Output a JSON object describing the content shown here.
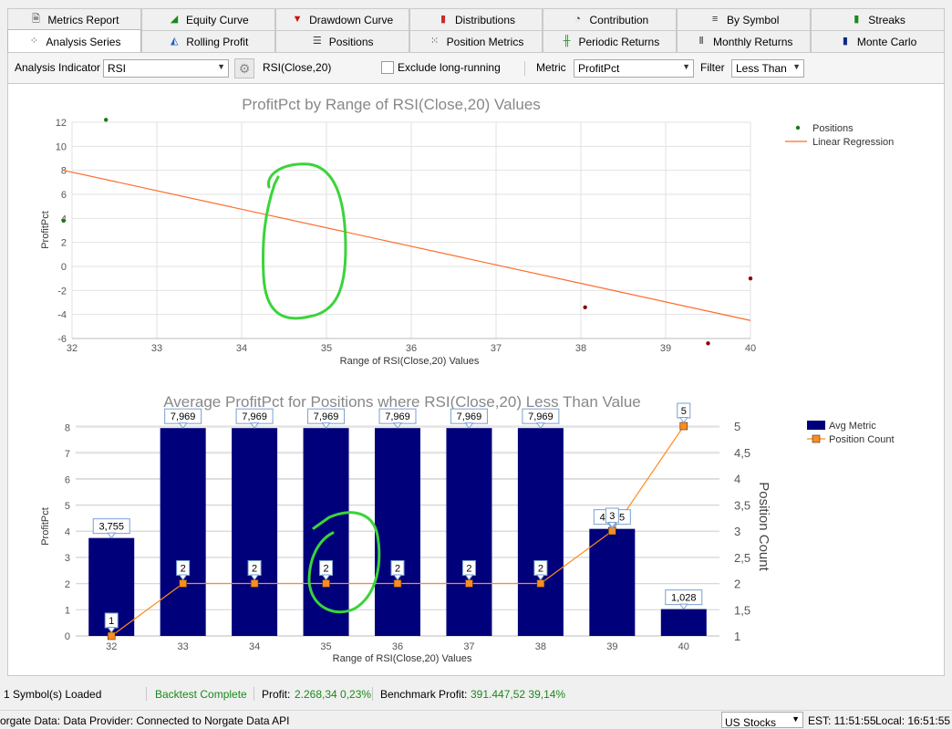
{
  "tabs_row1": [
    {
      "label": "Metrics Report",
      "icon": "document-icon"
    },
    {
      "label": "Equity Curve",
      "icon": "area-chart-icon"
    },
    {
      "label": "Drawdown Curve",
      "icon": "drawdown-icon"
    },
    {
      "label": "Distributions",
      "icon": "histogram-icon"
    },
    {
      "label": "Contribution",
      "icon": "pie-icon"
    },
    {
      "label": "By Symbol",
      "icon": "abc-icon"
    },
    {
      "label": "Streaks",
      "icon": "streaks-icon"
    }
  ],
  "tabs_row2": [
    {
      "label": "Analysis Series",
      "icon": "scatter-icon",
      "active": true
    },
    {
      "label": "Rolling Profit",
      "icon": "rolling-icon"
    },
    {
      "label": "Positions",
      "icon": "list-icon"
    },
    {
      "label": "Position Metrics",
      "icon": "dots-icon"
    },
    {
      "label": "Periodic Returns",
      "icon": "candles-icon"
    },
    {
      "label": "Monthly Returns",
      "icon": "bars-icon"
    },
    {
      "label": "Monte Carlo",
      "icon": "monte-icon"
    }
  ],
  "toolbar": {
    "indicator_label": "Analysis Indicator",
    "indicator_value": "RSI",
    "indicator_params": "RSI(Close,20)",
    "exclude_label": "Exclude long-running",
    "metric_label": "Metric",
    "metric_value": "ProfitPct",
    "filter_label": "Filter",
    "filter_value": "Less Than"
  },
  "chart_data": [
    {
      "type": "scatter",
      "title": "ProfitPct by Range of RSI(Close,20) Values",
      "xlabel": "Range of RSI(Close,20) Values",
      "ylabel": "ProfitPct",
      "xlim": [
        32,
        40
      ],
      "ylim": [
        -6,
        12
      ],
      "xticks": [
        32,
        33,
        34,
        35,
        36,
        37,
        38,
        39,
        40
      ],
      "yticks": [
        -6,
        -4,
        -2,
        0,
        2,
        4,
        6,
        8,
        10,
        12
      ],
      "legend": [
        {
          "name": "Positions",
          "color": "#1a7a1a"
        },
        {
          "name": "Linear Regression",
          "color": "#ff6a2a"
        }
      ],
      "legend_position": "right",
      "points": [
        {
          "x": 31.9,
          "y": 3.8,
          "color": "#1a7a1a"
        },
        {
          "x": 32.4,
          "y": 12.2,
          "color": "#1a7a1a"
        },
        {
          "x": 38.05,
          "y": -3.4,
          "color": "#8b0000"
        },
        {
          "x": 39.5,
          "y": -6.4,
          "color": "#8b0000"
        },
        {
          "x": 40.0,
          "y": -1.0,
          "color": "#8b0000"
        }
      ],
      "regression": {
        "x": [
          31.9,
          40.0
        ],
        "y": [
          8.0,
          -4.5
        ]
      }
    },
    {
      "type": "bar",
      "title": "Average ProfitPct for Positions where RSI(Close,20) Less Than Value",
      "xlabel": "Range of RSI(Close,20) Values",
      "ylabel": "ProfitPct",
      "y2label": "Position Count",
      "categories": [
        "32",
        "33",
        "34",
        "35",
        "36",
        "37",
        "38",
        "39",
        "40"
      ],
      "ylim": [
        0,
        8.5
      ],
      "yticks": [
        0,
        1,
        2,
        3,
        4,
        5,
        6,
        7,
        8
      ],
      "y2lim": [
        1,
        5
      ],
      "y2ticks": [
        "1",
        "1,5",
        "2",
        "2,5",
        "3",
        "3,5",
        "4",
        "4,5",
        "5"
      ],
      "series": [
        {
          "name": "Avg Metric",
          "color": "#00007a",
          "values": [
            3.755,
            7.969,
            7.969,
            7.969,
            7.969,
            7.969,
            7.969,
            4.105,
            1.028
          ],
          "labels": [
            "3,755",
            "7,969",
            "7,969",
            "7,969",
            "7,969",
            "7,969",
            "7,969",
            "4,105",
            "1,028"
          ]
        },
        {
          "name": "Position Count",
          "color": "#ff8c1a",
          "values": [
            1,
            2,
            2,
            2,
            2,
            2,
            2,
            3,
            5
          ],
          "labels": [
            "1",
            "2",
            "2",
            "2",
            "2",
            "2",
            "2",
            "3",
            "5"
          ]
        }
      ],
      "legend_position": "right"
    }
  ],
  "status": {
    "symbols_loaded": "1 Symbol(s) Loaded",
    "backtest": "Backtest Complete",
    "profit_label": "Profit:",
    "profit_value": "2.268,34 0,23%",
    "benchmark_label": "Benchmark Profit:",
    "benchmark_value": "391.447,52 39,14%",
    "provider": "orgate Data: Data Provider: Connected to Norgate Data API",
    "market": "US Stocks",
    "est": "EST: 11:51:55",
    "local": "Local: 16:51:55"
  }
}
